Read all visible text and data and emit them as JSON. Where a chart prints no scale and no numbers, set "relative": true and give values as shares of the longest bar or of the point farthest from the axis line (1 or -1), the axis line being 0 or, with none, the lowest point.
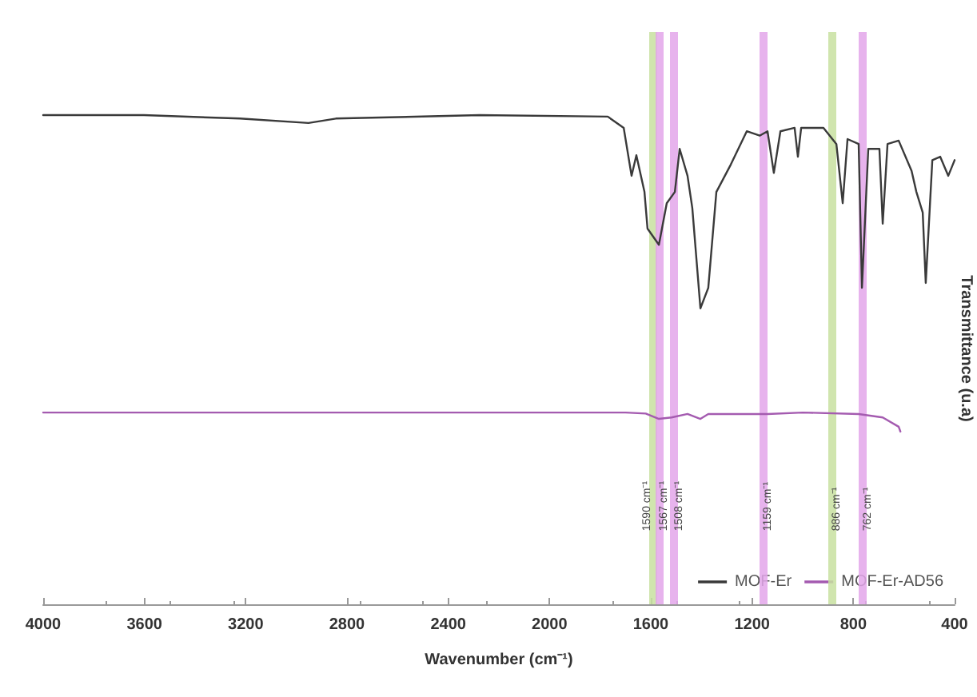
{
  "chart_data": {
    "type": "line",
    "relative": true,
    "xlabel": "Wavenumber (cm⁻¹)",
    "ylabel": "Transmittance (u.a)",
    "xlim": [
      4000,
      400
    ],
    "xticks": [
      4000,
      3600,
      3200,
      2800,
      2400,
      2000,
      1600,
      1200,
      800,
      400
    ],
    "legend": "bottom right",
    "grid": false,
    "marker": "none",
    "line_style": "solid",
    "series": [
      {
        "name": "MOF-Er",
        "color": "#3a3a3a",
        "x": [
          4000,
          3602,
          3223,
          2952,
          2844,
          2276,
          1770,
          1707,
          1676,
          1657,
          1625,
          1613,
          1568,
          1537,
          1505,
          1486,
          1455,
          1436,
          1404,
          1373,
          1341,
          1284,
          1221,
          1170,
          1139,
          1114,
          1088,
          1032,
          1019,
          1006,
          918,
          867,
          842,
          823,
          779,
          766,
          741,
          697,
          684,
          665,
          621,
          570,
          551,
          526,
          514,
          488,
          457,
          425,
          400
        ],
        "values": [
          1.0,
          1.0,
          0.993,
          0.984,
          0.993,
          1.0,
          0.997,
          0.974,
          0.876,
          0.918,
          0.843,
          0.768,
          0.735,
          0.82,
          0.843,
          0.931,
          0.876,
          0.81,
          0.605,
          0.647,
          0.843,
          0.899,
          0.967,
          0.958,
          0.967,
          0.882,
          0.967,
          0.974,
          0.915,
          0.974,
          0.974,
          0.941,
          0.82,
          0.951,
          0.941,
          0.647,
          0.931,
          0.931,
          0.778,
          0.941,
          0.948,
          0.886,
          0.843,
          0.801,
          0.657,
          0.908,
          0.915,
          0.876,
          0.908
        ]
      },
      {
        "name": "MOF-Er-AD56",
        "color": "#a45bb0",
        "x": [
          4000,
          3000,
          2000,
          1700,
          1620,
          1568,
          1518,
          1455,
          1404,
          1373,
          1139,
          1000,
          779,
          684,
          621,
          614
        ],
        "values": [
          0.392,
          0.392,
          0.392,
          0.392,
          0.39,
          0.379,
          0.382,
          0.389,
          0.379,
          0.389,
          0.389,
          0.392,
          0.389,
          0.382,
          0.363,
          0.353
        ]
      }
    ],
    "ref_lines": [
      {
        "axis": "x",
        "value": 1590,
        "label": "1590 cm⁻¹",
        "color": "#c8e0a0"
      },
      {
        "axis": "x",
        "value": 1567,
        "label": "1567 cm⁻¹",
        "color": "#e3a6ea"
      },
      {
        "axis": "x",
        "value": 1508,
        "label": "1508 cm⁻¹",
        "color": "#e3a6ea"
      },
      {
        "axis": "x",
        "value": 1159,
        "label": "1159 cm⁻¹",
        "color": "#e3a6ea"
      },
      {
        "axis": "x",
        "value": 886,
        "label": "886 cm⁻¹",
        "color": "#c8e0a0"
      },
      {
        "axis": "x",
        "value": 762,
        "label": "762 cm⁻¹",
        "color": "#e3a6ea"
      }
    ]
  }
}
